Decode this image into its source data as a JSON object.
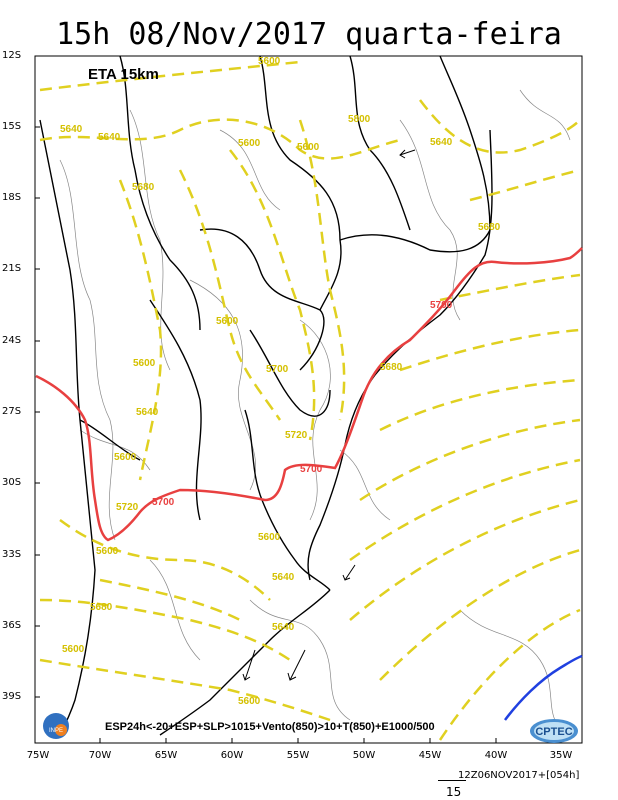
{
  "title": "15h 08/Nov/2017 quarta-feira",
  "model_label": "ETA 15km",
  "legend_text": "ESP24h<-20+ESP+SLP>1015+Vento(850)>10+T(850)+E1000/500",
  "run_info": "12Z06NOV2017+[054h]",
  "run_number": "15",
  "logos": {
    "left": "INPE",
    "right": "CPTEC"
  },
  "lat_labels": [
    "12S",
    "15S",
    "18S",
    "21S",
    "24S",
    "27S",
    "30S",
    "33S",
    "36S",
    "39S"
  ],
  "lon_labels": [
    "75W",
    "70W",
    "65W",
    "60W",
    "55W",
    "50W",
    "45W",
    "40W",
    "35W"
  ],
  "thickness_labels": {
    "yellow": [
      "5600",
      "5640",
      "5640",
      "5680",
      "5600",
      "5800",
      "5600",
      "5600",
      "5700",
      "5720",
      "5600",
      "5680",
      "5640",
      "5600",
      "5720",
      "5600",
      "5600",
      "5640",
      "5680",
      "5640",
      "5600",
      "5640",
      "5680",
      "5600",
      "5720",
      "5680",
      "5560",
      "5760"
    ],
    "red": [
      "5700",
      "5700",
      "5700"
    ]
  },
  "colors": {
    "thickness_yellow": "#e0d020",
    "thickness_red": "#e84040",
    "isotherm_blue": "#2040e0",
    "contour_gray": "#888888",
    "border_black": "#000000"
  }
}
